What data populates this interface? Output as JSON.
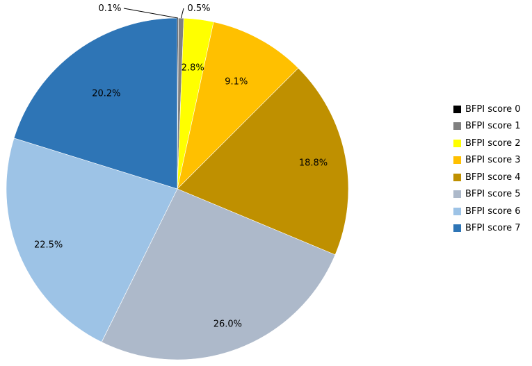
{
  "chart_data": {
    "type": "pie",
    "title": "",
    "start_angle_deg": 0,
    "direction": "clockwise",
    "legend_position": "right",
    "categories": [
      "BFPI score 0",
      "BFPI score 1",
      "BFPI score 2",
      "BFPI score 3",
      "BFPI score 4",
      "BFPI score 5",
      "BFPI score 6",
      "BFPI score 7"
    ],
    "values": [
      0.1,
      0.5,
      2.8,
      9.1,
      18.8,
      26.0,
      22.5,
      20.2
    ],
    "value_labels": [
      "0.1%",
      "0.5%",
      "2.8%",
      "9.1%",
      "18.8%",
      "26.0%",
      "22.5%",
      "20.2%"
    ],
    "colors": [
      "#000000",
      "#808080",
      "#ffff00",
      "#ffc000",
      "#bf9000",
      "#adb9ca",
      "#9dc3e6",
      "#2e75b6"
    ]
  }
}
